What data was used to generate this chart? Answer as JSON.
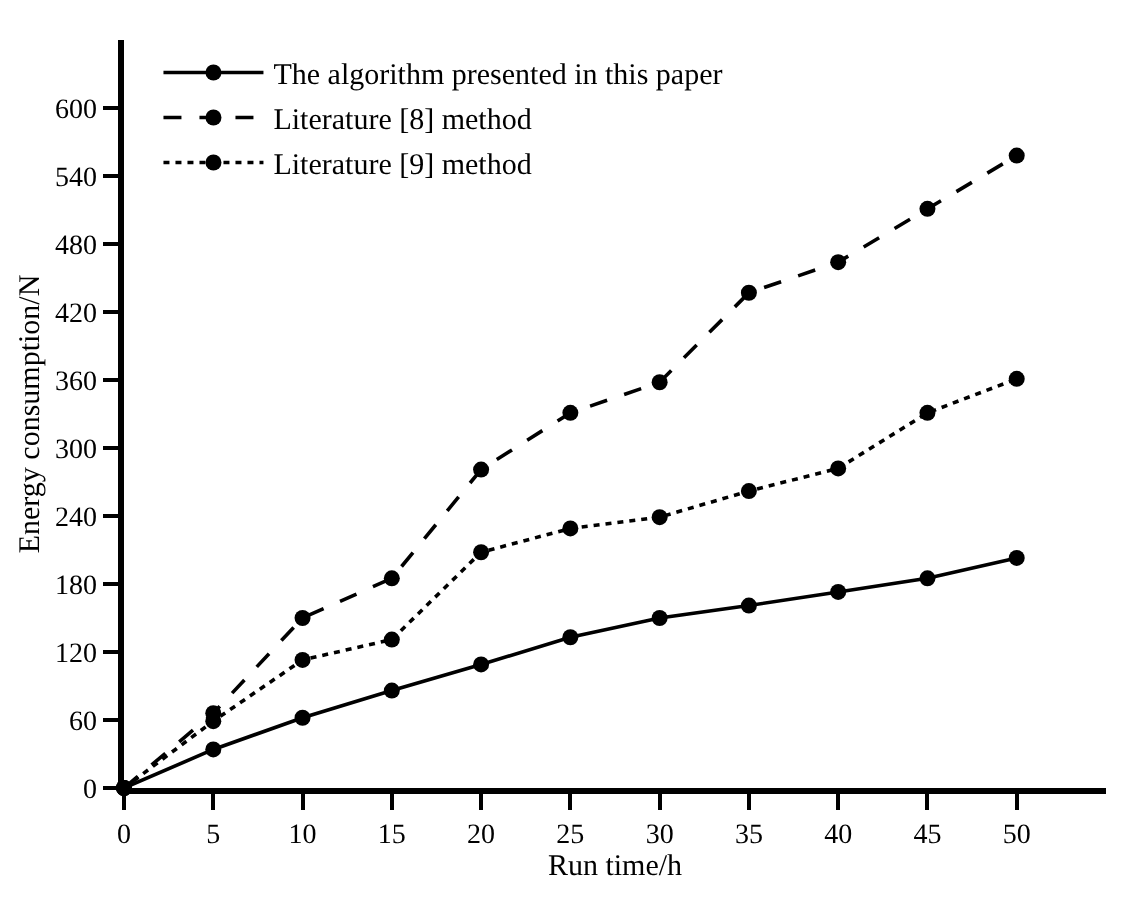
{
  "chart_data": {
    "type": "line",
    "xlabel": "Run time/h",
    "ylabel": "Energy consumption/N",
    "x": [
      0,
      5,
      10,
      15,
      20,
      25,
      30,
      35,
      40,
      45,
      50
    ],
    "series": [
      {
        "name": "The algorithm presented in this paper",
        "color": "#000000",
        "line_style": "solid",
        "values": [
          0,
          34,
          62,
          86,
          109,
          133,
          150,
          161,
          173,
          185,
          203
        ]
      },
      {
        "name": "Literature [8] method",
        "color": "#000000",
        "line_style": "dashed",
        "values": [
          0,
          66,
          150,
          185,
          281,
          331,
          358,
          437,
          464,
          511,
          558
        ]
      },
      {
        "name": "Literature [9] method",
        "color": "#000000",
        "line_style": "dotted",
        "values": [
          0,
          59,
          113,
          131,
          208,
          229,
          239,
          262,
          282,
          331,
          361
        ]
      }
    ],
    "xlim": [
      0,
      55
    ],
    "xticks": [
      0,
      5,
      10,
      15,
      20,
      25,
      30,
      35,
      40,
      45,
      50
    ],
    "ylim": [
      0,
      660
    ],
    "yticks": [
      0,
      60,
      120,
      180,
      240,
      300,
      360,
      420,
      480,
      540,
      600
    ],
    "legend": "top left",
    "marker": "circle"
  }
}
